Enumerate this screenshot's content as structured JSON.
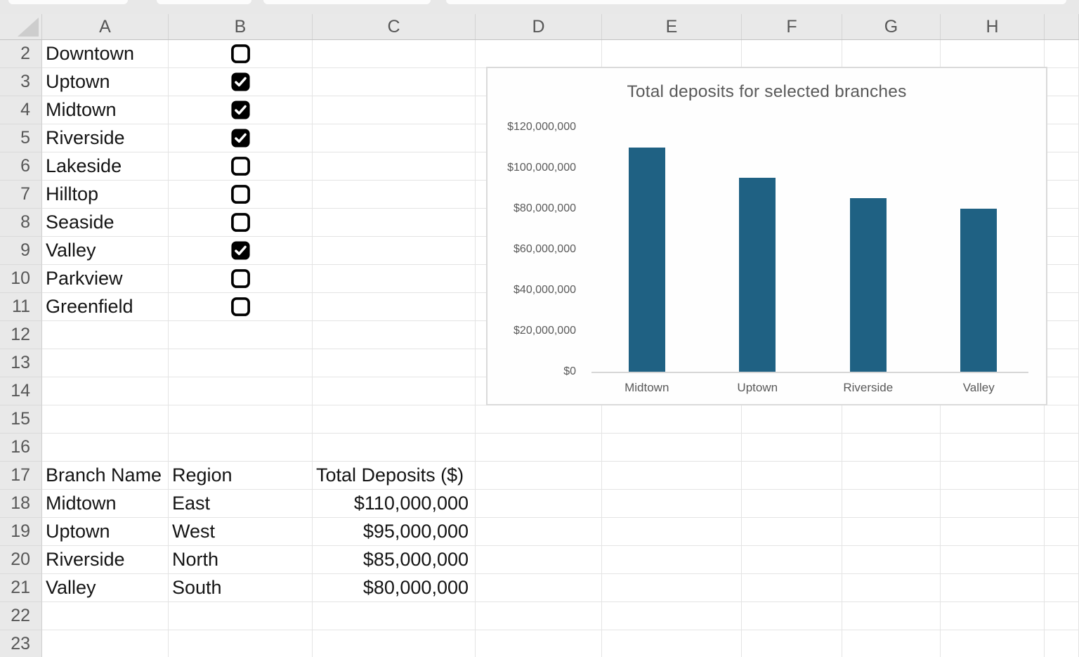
{
  "sheet": {
    "column_headers": [
      "A",
      "B",
      "C",
      "D",
      "E",
      "F",
      "G",
      "H"
    ],
    "row_numbers": [
      "2",
      "3",
      "4",
      "5",
      "6",
      "7",
      "8",
      "9",
      "10",
      "11",
      "12",
      "13",
      "14",
      "15",
      "16",
      "17",
      "18",
      "19",
      "20",
      "21",
      "22",
      "23"
    ]
  },
  "branch_selector": {
    "items": [
      {
        "row": "2",
        "name": "Downtown",
        "checked": false
      },
      {
        "row": "3",
        "name": "Uptown",
        "checked": true
      },
      {
        "row": "4",
        "name": "Midtown",
        "checked": true
      },
      {
        "row": "5",
        "name": "Riverside",
        "checked": true
      },
      {
        "row": "6",
        "name": "Lakeside",
        "checked": false
      },
      {
        "row": "7",
        "name": "Hilltop",
        "checked": false
      },
      {
        "row": "8",
        "name": "Seaside",
        "checked": false
      },
      {
        "row": "9",
        "name": "Valley",
        "checked": true
      },
      {
        "row": "10",
        "name": "Parkview",
        "checked": false
      },
      {
        "row": "11",
        "name": "Greenfield",
        "checked": false
      }
    ]
  },
  "results_table": {
    "header_row": "17",
    "columns": [
      "Branch Name",
      "Region",
      "Total Deposits ($)"
    ],
    "rows": [
      {
        "row": "18",
        "branch": "Midtown",
        "region": "East",
        "deposits": "$110,000,000"
      },
      {
        "row": "19",
        "branch": "Uptown",
        "region": "West",
        "deposits": "$95,000,000"
      },
      {
        "row": "20",
        "branch": "Riverside",
        "region": "North",
        "deposits": "$85,000,000"
      },
      {
        "row": "21",
        "branch": "Valley",
        "region": "South",
        "deposits": "$80,000,000"
      }
    ]
  },
  "chart_data": {
    "type": "bar",
    "title": "Total deposits for selected branches",
    "categories": [
      "Midtown",
      "Uptown",
      "Riverside",
      "Valley"
    ],
    "values": [
      110000000,
      95000000,
      85000000,
      80000000
    ],
    "ylim": [
      0,
      120000000
    ],
    "y_ticks": [
      {
        "value": 0,
        "label": "$0"
      },
      {
        "value": 20000000,
        "label": "$20,000,000"
      },
      {
        "value": 40000000,
        "label": "$40,000,000"
      },
      {
        "value": 60000000,
        "label": "$60,000,000"
      },
      {
        "value": 80000000,
        "label": "$80,000,000"
      },
      {
        "value": 100000000,
        "label": "$100,000,000"
      },
      {
        "value": 120000000,
        "label": "$120,000,000"
      }
    ],
    "grid": false,
    "legend": false,
    "xlabel": "",
    "ylabel": "",
    "bar_color": "#1f6183",
    "text_color": "#595959"
  },
  "colors": {
    "bar": "#1f6183",
    "header_bg": "#e9e9e9",
    "gridline": "#e4e4e4",
    "chart_border": "#dadada",
    "axis_text": "#595959",
    "cell_text": "#141414",
    "header_text": "#575757",
    "checkbox": "#000000"
  }
}
